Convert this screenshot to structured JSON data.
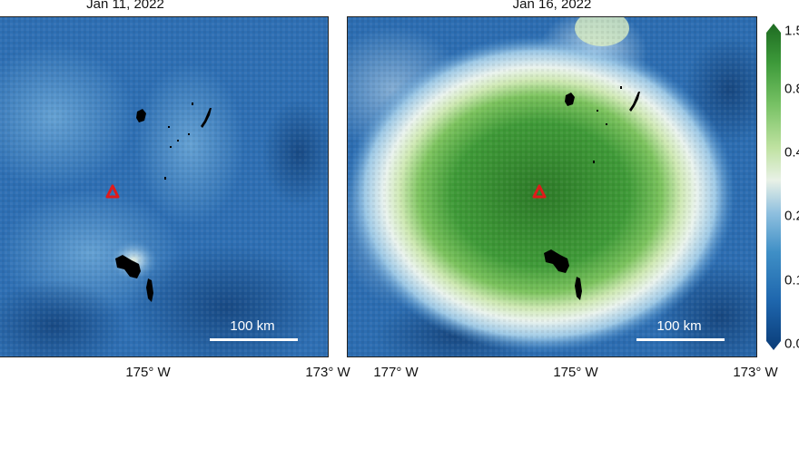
{
  "panels": [
    {
      "title": "Jan 11, 2022",
      "scale_label": "100 km",
      "lon_ticks": [
        "175° W",
        "173° W"
      ]
    },
    {
      "title": "Jan 16, 2022",
      "scale_label": "100 km",
      "lon_ticks": [
        "177° W",
        "175° W",
        "173° W"
      ]
    }
  ],
  "colorbar": {
    "labels": [
      "1.5",
      "0.8",
      "0.4",
      "0.2",
      "0.1",
      "0.0"
    ],
    "colors": [
      "#0a3c78",
      "#1e66ad",
      "#3f8fc6",
      "#8fc0df",
      "#e8f1e6",
      "#bfe2a1",
      "#78c265",
      "#3d9a3a",
      "#1e6b22"
    ]
  },
  "markers": {
    "volcano_color": "#e01a1a",
    "land_color": "#000000",
    "background_low": "#1f5fa8",
    "plume_high": "#2e7d2a"
  }
}
